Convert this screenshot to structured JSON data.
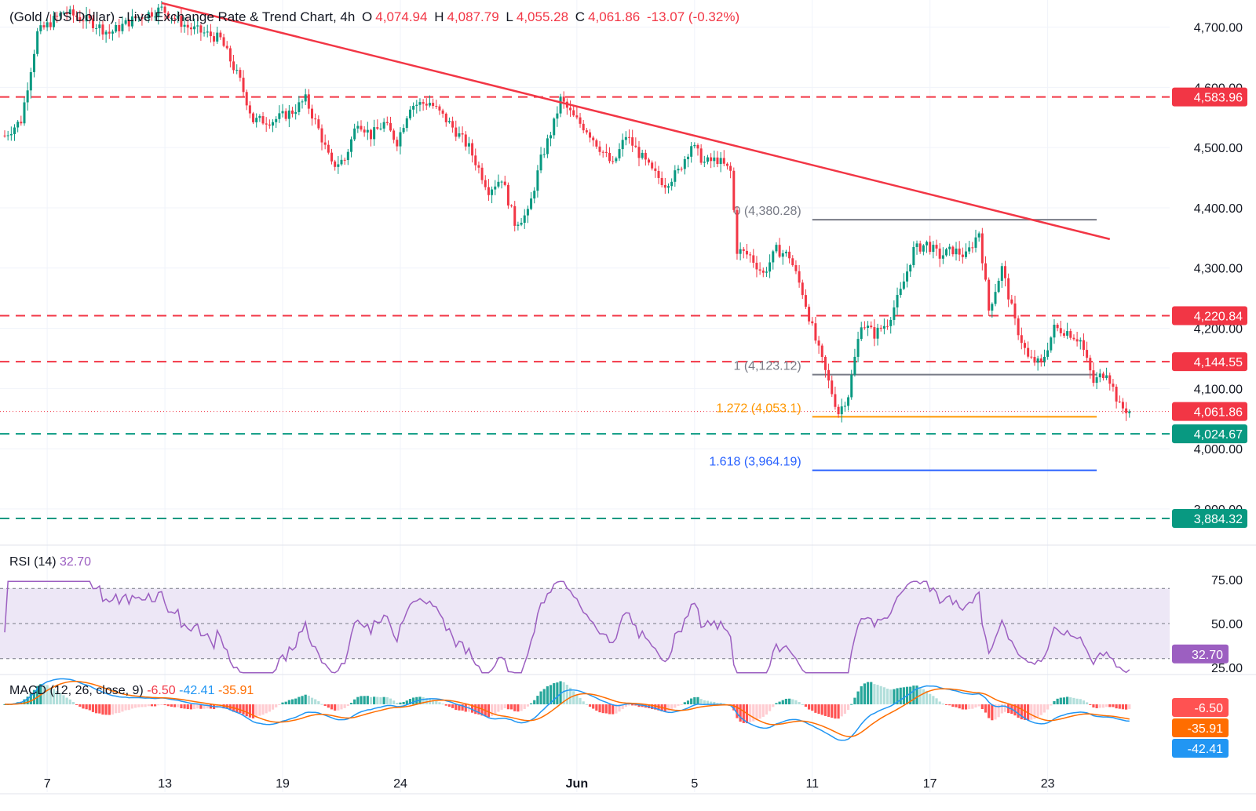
{
  "header": {
    "symbol": "(Gold / US Dollar) - Live Exchange Rate & Trend Chart, 4h",
    "o_label": "O",
    "o_value": "4,074.94",
    "h_label": "H",
    "h_value": "4,087.79",
    "l_label": "L",
    "l_value": "4,055.28",
    "c_label": "C",
    "c_value": "4,061.86",
    "change": "-13.07 (-0.32%)"
  },
  "colors": {
    "up": "#089981",
    "down": "#f23645",
    "resistance": "#f23645",
    "support": "#089981",
    "trendline": "#f23645",
    "fib_base": "#787b86",
    "fib_1272": "#ff9800",
    "fib_1618": "#2962ff",
    "rsi": "#9c5fc1",
    "rsi_band": "#ede7f6",
    "macd_line": "#2196f3",
    "signal_line": "#ff6d00",
    "current_price": "#f23645"
  },
  "price_axis": {
    "ticks": [
      "4,700.00",
      "4,600.00",
      "4,500.00",
      "4,400.00",
      "4,300.00",
      "4,200.00",
      "4,100.00",
      "4,000.00",
      "3,900.00"
    ],
    "tick_values": [
      4700,
      4600,
      4500,
      4400,
      4300,
      4200,
      4100,
      4000,
      3900
    ]
  },
  "levels": [
    {
      "value": 4583.96,
      "label": "4,583.96",
      "kind": "resistance"
    },
    {
      "value": 4220.84,
      "label": "4,220.84",
      "kind": "resistance"
    },
    {
      "value": 4144.55,
      "label": "4,144.55",
      "kind": "resistance"
    },
    {
      "value": 4024.67,
      "label": "4,024.67",
      "kind": "support"
    },
    {
      "value": 3884.32,
      "label": "3,884.32",
      "kind": "support"
    }
  ],
  "current_price": {
    "value": 4061.86,
    "label": "4,061.86"
  },
  "fib": [
    {
      "ratio_label": "0 (4,380.28)",
      "value": 4380.28,
      "kind": "base"
    },
    {
      "ratio_label": "1 (4,123.12)",
      "value": 4123.12,
      "kind": "base"
    },
    {
      "ratio_label": "1.272 (4,053.1)",
      "value": 4053.1,
      "kind": "ext1"
    },
    {
      "ratio_label": "1.618 (3,964.19)",
      "value": 3964.19,
      "kind": "ext2"
    }
  ],
  "date_axis": {
    "labels": [
      "7",
      "13",
      "19",
      "24",
      "Jun",
      "5",
      "11",
      "17",
      "23"
    ],
    "bar_index": [
      13,
      49,
      85,
      121,
      175,
      211,
      247,
      283,
      319
    ]
  },
  "rsi": {
    "title": "RSI (14)",
    "value": "32.70",
    "ticks": [
      "75.00",
      "50.00",
      "25.00"
    ],
    "tick_values": [
      75,
      50,
      25
    ],
    "band_upper": 70,
    "band_lower": 30
  },
  "macd": {
    "title": "MACD (12, 26, close, 9)",
    "hist_value": "-6.50",
    "macd_value": "-42.41",
    "signal_value": "-35.91"
  },
  "chart_data": {
    "type": "candlestick",
    "title": "(Gold / US Dollar) - Live Exchange Rate & Trend Chart, 4h",
    "ylim": [
      3840,
      4745
    ],
    "trendline": {
      "start": {
        "bar": 48,
        "price": 4740
      },
      "end": {
        "bar": 338,
        "price": 4348
      }
    },
    "fib_anchor_bars": [
      247,
      334
    ],
    "key_points": [
      {
        "bar": 0,
        "price": 4520
      },
      {
        "bar": 5,
        "price": 4545
      },
      {
        "bar": 10,
        "price": 4690
      },
      {
        "bar": 18,
        "price": 4725
      },
      {
        "bar": 26,
        "price": 4710
      },
      {
        "bar": 32,
        "price": 4690
      },
      {
        "bar": 40,
        "price": 4715
      },
      {
        "bar": 48,
        "price": 4730
      },
      {
        "bar": 56,
        "price": 4700
      },
      {
        "bar": 66,
        "price": 4680
      },
      {
        "bar": 72,
        "price": 4610
      },
      {
        "bar": 76,
        "price": 4545
      },
      {
        "bar": 82,
        "price": 4545
      },
      {
        "bar": 88,
        "price": 4560
      },
      {
        "bar": 92,
        "price": 4580
      },
      {
        "bar": 96,
        "price": 4530
      },
      {
        "bar": 100,
        "price": 4470
      },
      {
        "bar": 104,
        "price": 4480
      },
      {
        "bar": 108,
        "price": 4545
      },
      {
        "bar": 112,
        "price": 4520
      },
      {
        "bar": 116,
        "price": 4540
      },
      {
        "bar": 120,
        "price": 4510
      },
      {
        "bar": 124,
        "price": 4570
      },
      {
        "bar": 130,
        "price": 4575
      },
      {
        "bar": 136,
        "price": 4540
      },
      {
        "bar": 142,
        "price": 4500
      },
      {
        "bar": 148,
        "price": 4430
      },
      {
        "bar": 152,
        "price": 4450
      },
      {
        "bar": 156,
        "price": 4375
      },
      {
        "bar": 160,
        "price": 4390
      },
      {
        "bar": 164,
        "price": 4480
      },
      {
        "bar": 168,
        "price": 4540
      },
      {
        "bar": 170,
        "price": 4580
      },
      {
        "bar": 174,
        "price": 4550
      },
      {
        "bar": 178,
        "price": 4530
      },
      {
        "bar": 182,
        "price": 4500
      },
      {
        "bar": 186,
        "price": 4470
      },
      {
        "bar": 190,
        "price": 4520
      },
      {
        "bar": 194,
        "price": 4490
      },
      {
        "bar": 198,
        "price": 4460
      },
      {
        "bar": 202,
        "price": 4440
      },
      {
        "bar": 206,
        "price": 4460
      },
      {
        "bar": 210,
        "price": 4505
      },
      {
        "bar": 214,
        "price": 4475
      },
      {
        "bar": 218,
        "price": 4480
      },
      {
        "bar": 222,
        "price": 4460
      },
      {
        "bar": 224,
        "price": 4330
      },
      {
        "bar": 228,
        "price": 4320
      },
      {
        "bar": 232,
        "price": 4290
      },
      {
        "bar": 236,
        "price": 4330
      },
      {
        "bar": 240,
        "price": 4320
      },
      {
        "bar": 244,
        "price": 4260
      },
      {
        "bar": 248,
        "price": 4180
      },
      {
        "bar": 252,
        "price": 4110
      },
      {
        "bar": 255,
        "price": 4060
      },
      {
        "bar": 258,
        "price": 4090
      },
      {
        "bar": 262,
        "price": 4210
      },
      {
        "bar": 266,
        "price": 4190
      },
      {
        "bar": 270,
        "price": 4210
      },
      {
        "bar": 274,
        "price": 4260
      },
      {
        "bar": 278,
        "price": 4330
      },
      {
        "bar": 282,
        "price": 4340
      },
      {
        "bar": 286,
        "price": 4320
      },
      {
        "bar": 290,
        "price": 4330
      },
      {
        "bar": 294,
        "price": 4320
      },
      {
        "bar": 298,
        "price": 4360
      },
      {
        "bar": 301,
        "price": 4230
      },
      {
        "bar": 305,
        "price": 4300
      },
      {
        "bar": 309,
        "price": 4210
      },
      {
        "bar": 313,
        "price": 4150
      },
      {
        "bar": 317,
        "price": 4140
      },
      {
        "bar": 321,
        "price": 4200
      },
      {
        "bar": 325,
        "price": 4195
      },
      {
        "bar": 329,
        "price": 4180
      },
      {
        "bar": 333,
        "price": 4110
      },
      {
        "bar": 337,
        "price": 4130
      },
      {
        "bar": 341,
        "price": 4070
      },
      {
        "bar": 344,
        "price": 4062
      }
    ]
  }
}
